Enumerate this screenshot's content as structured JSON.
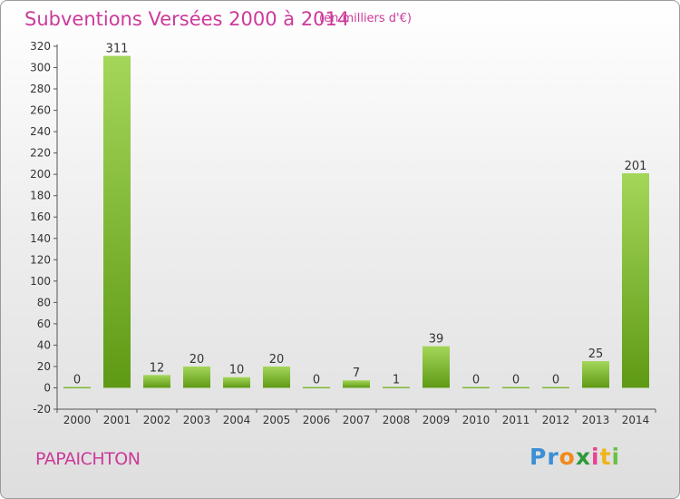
{
  "header": {
    "title": "Subventions Versées 2000 à 2014",
    "unit": "(en milliers d'€)"
  },
  "commune": "PAPAICHTON",
  "logo": {
    "letters": [
      "P",
      "r",
      "o",
      "x",
      "i",
      "t",
      "i"
    ],
    "colors": [
      "#3a8fd6",
      "#3a8fd6",
      "#f08a1c",
      "#2e9a3a",
      "#e8428f",
      "#f0b41c",
      "#6cc04a"
    ]
  },
  "colors": {
    "bar_top": "#a4d65a",
    "bar_bottom": "#5f9a14",
    "axis_text": "#333333",
    "title": "#cc3a9a"
  },
  "chart_data": {
    "type": "bar",
    "categories": [
      "2000",
      "2001",
      "2002",
      "2003",
      "2004",
      "2005",
      "2006",
      "2007",
      "2008",
      "2009",
      "2010",
      "2011",
      "2012",
      "2013",
      "2014"
    ],
    "values": [
      0,
      311,
      12,
      20,
      10,
      20,
      0,
      7,
      1,
      39,
      0,
      0,
      0,
      25,
      201
    ],
    "value_labels": [
      "0",
      "311",
      "12",
      "20",
      "10",
      "20",
      "0",
      "7",
      "1",
      "39",
      "0",
      "0",
      "0",
      "25",
      "201"
    ],
    "ylim": [
      -20,
      320
    ],
    "yticks": [
      "-20",
      "0",
      "20",
      "40",
      "60",
      "80",
      "100",
      "120",
      "140",
      "160",
      "180",
      "200",
      "220",
      "240",
      "260",
      "280",
      "300",
      "320"
    ],
    "grid": false,
    "title": "Subventions Versées 2000 à 2014",
    "xlabel": "",
    "ylabel": ""
  }
}
